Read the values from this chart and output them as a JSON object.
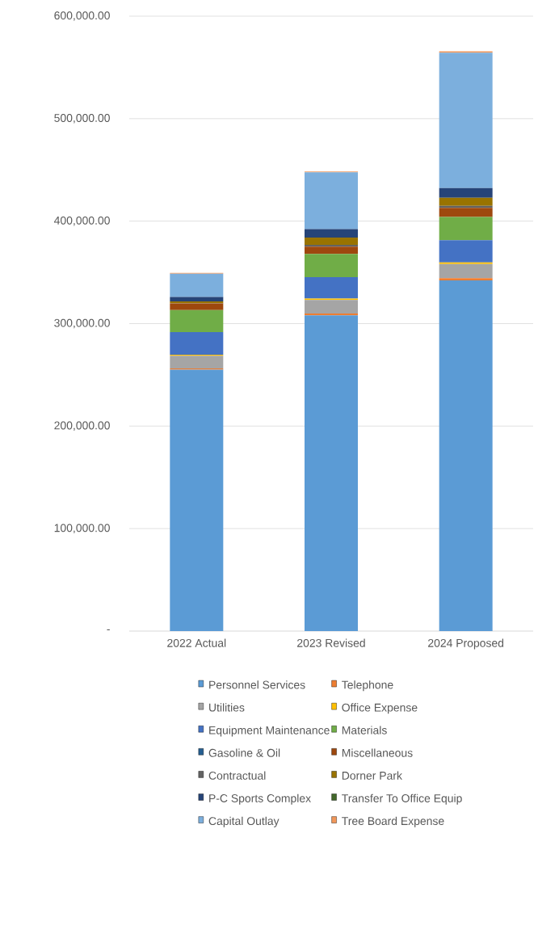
{
  "chart_data": {
    "type": "bar",
    "stacked": true,
    "categories": [
      "2022 Actual",
      "2023 Revised",
      "2024 Proposed"
    ],
    "series": [
      {
        "name": "Personnel Services",
        "color": "#5b9bd5",
        "values": [
          255000,
          308100,
          342200
        ]
      },
      {
        "name": "Telephone",
        "color": "#ed7d31",
        "values": [
          1300,
          1800,
          2100
        ]
      },
      {
        "name": "Utilities",
        "color": "#a5a5a5",
        "values": [
          12300,
          13200,
          13900
        ]
      },
      {
        "name": "Office Expense",
        "color": "#ffc000",
        "values": [
          1100,
          1300,
          1600
        ]
      },
      {
        "name": "Equipment Maintenance",
        "color": "#4472c4",
        "values": [
          22000,
          21000,
          21700
        ]
      },
      {
        "name": "Materials",
        "color": "#70ad47",
        "values": [
          21500,
          22600,
          22600
        ]
      },
      {
        "name": "Gasoline & Oil",
        "color": "#255e91",
        "values": [
          0,
          0,
          0
        ]
      },
      {
        "name": "Miscellaneous",
        "color": "#9e480e",
        "values": [
          6500,
          7100,
          8900
        ]
      },
      {
        "name": "Contractual",
        "color": "#636363",
        "values": [
          300,
          1800,
          1900
        ]
      },
      {
        "name": "Dorner Park",
        "color": "#997300",
        "values": [
          1600,
          7100,
          7900
        ]
      },
      {
        "name": "P-C Sports Complex",
        "color": "#264478",
        "values": [
          4400,
          8200,
          9500
        ]
      },
      {
        "name": "Transfer To Office Equip",
        "color": "#43682b",
        "values": [
          0,
          0,
          0
        ]
      },
      {
        "name": "Capital Outlay",
        "color": "#7cafdd",
        "values": [
          22600,
          55400,
          132100
        ]
      },
      {
        "name": "Tree Board Expense",
        "color": "#f1975a",
        "values": [
          800,
          800,
          1300
        ]
      }
    ],
    "ylim": [
      0,
      600000
    ],
    "yticks": [
      {
        "value": 0,
        "label": "-"
      },
      {
        "value": 100000,
        "label": "100,000.00"
      },
      {
        "value": 200000,
        "label": "200,000.00"
      },
      {
        "value": 300000,
        "label": "300,000.00"
      },
      {
        "value": 400000,
        "label": "400,000.00"
      },
      {
        "value": 500000,
        "label": "500,000.00"
      },
      {
        "value": 600000,
        "label": "600,000.00"
      }
    ],
    "grid": "y",
    "legend": "bottom"
  }
}
